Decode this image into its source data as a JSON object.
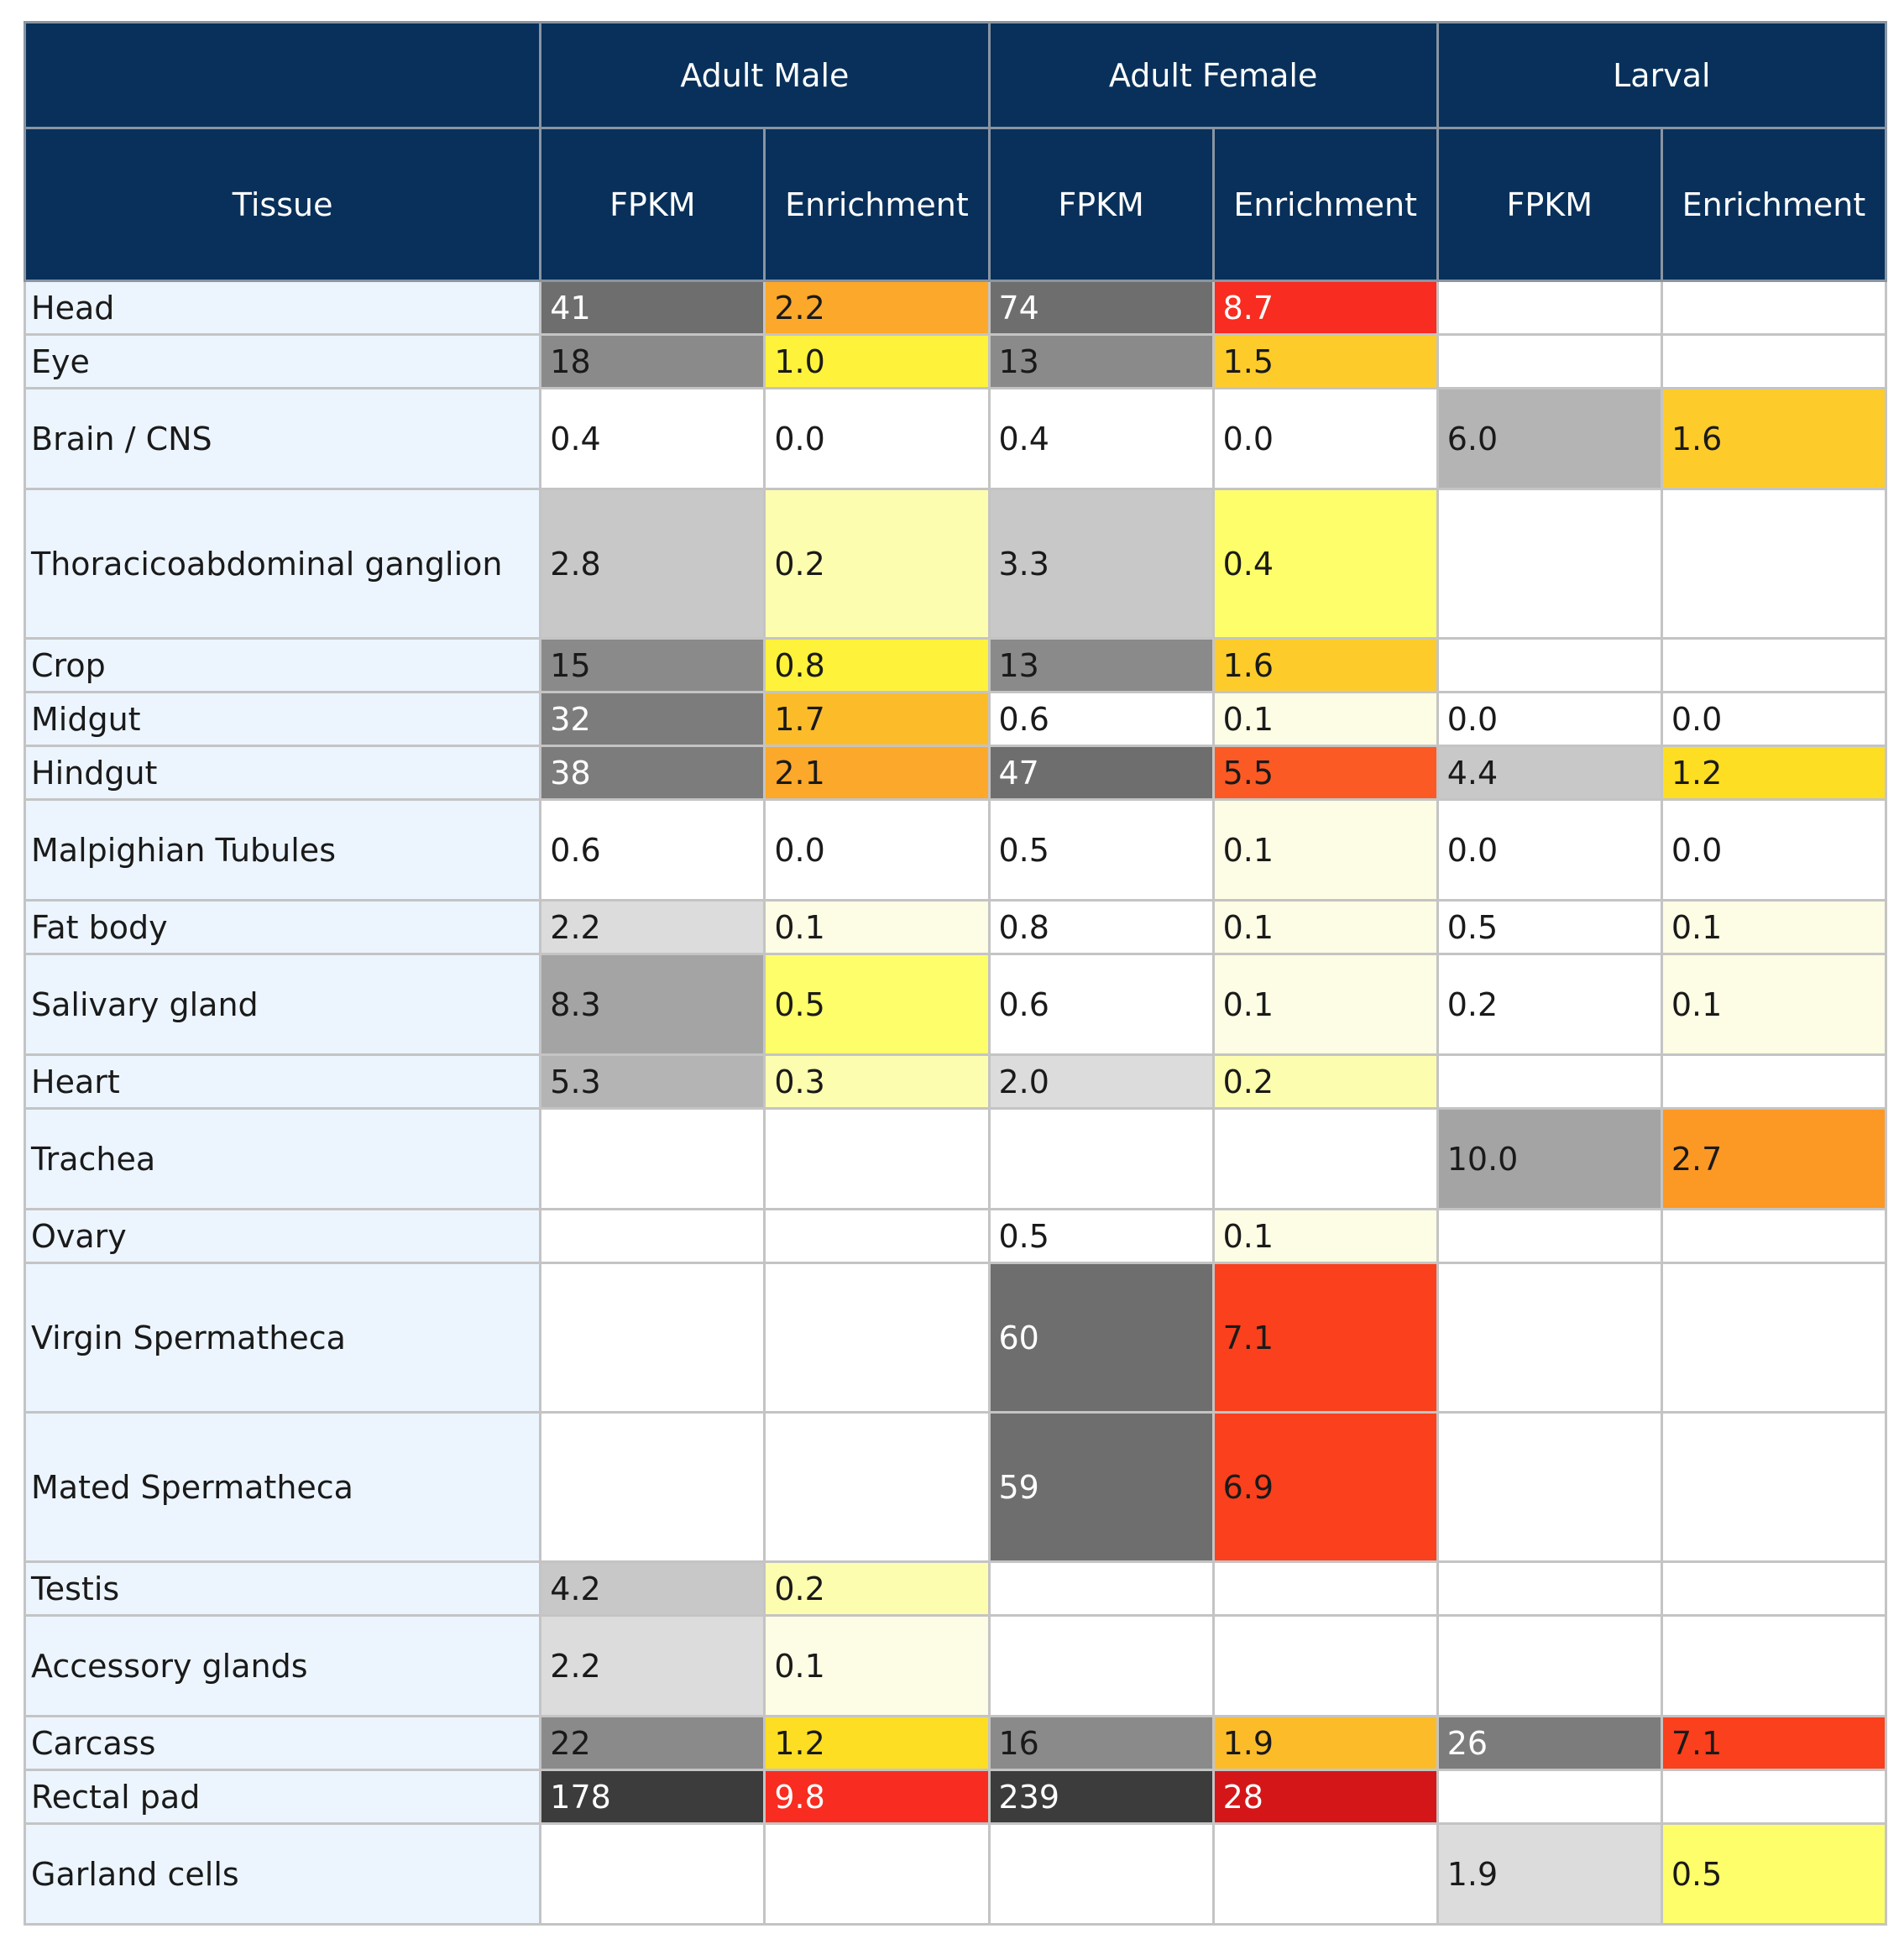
{
  "header": {
    "groups": [
      "Adult Male",
      "Adult Female",
      "Larval"
    ],
    "tissue_label": "Tissue",
    "sub_labels": [
      "FPKM",
      "Enrichment",
      "FPKM",
      "Enrichment",
      "FPKM",
      "Enrichment"
    ]
  },
  "rows": [
    {
      "tissue": "Head",
      "size": "s",
      "cells": [
        "41",
        "2.2",
        "74",
        "8.7",
        "",
        ""
      ]
    },
    {
      "tissue": "Eye",
      "size": "s",
      "cells": [
        "18",
        "1.0",
        "13",
        "1.5",
        "",
        ""
      ]
    },
    {
      "tissue": "Brain / CNS",
      "size": "m",
      "cells": [
        "0.4",
        "0.0",
        "0.4",
        "0.0",
        "6.0",
        "1.6"
      ]
    },
    {
      "tissue": "Thoracicoabdominal ganglion",
      "size": "l",
      "cells": [
        "2.8",
        "0.2",
        "3.3",
        "0.4",
        "",
        ""
      ]
    },
    {
      "tissue": "Crop",
      "size": "s",
      "cells": [
        "15",
        "0.8",
        "13",
        "1.6",
        "",
        ""
      ]
    },
    {
      "tissue": "Midgut",
      "size": "s",
      "cells": [
        "32",
        "1.7",
        "0.6",
        "0.1",
        "0.0",
        "0.0"
      ]
    },
    {
      "tissue": "Hindgut",
      "size": "s",
      "cells": [
        "38",
        "2.1",
        "47",
        "5.5",
        "4.4",
        "1.2"
      ]
    },
    {
      "tissue": "Malpighian Tubules",
      "size": "m",
      "cells": [
        "0.6",
        "0.0",
        "0.5",
        "0.1",
        "0.0",
        "0.0"
      ]
    },
    {
      "tissue": "Fat body",
      "size": "s",
      "cells": [
        "2.2",
        "0.1",
        "0.8",
        "0.1",
        "0.5",
        "0.1"
      ]
    },
    {
      "tissue": "Salivary gland",
      "size": "m",
      "cells": [
        "8.3",
        "0.5",
        "0.6",
        "0.1",
        "0.2",
        "0.1"
      ]
    },
    {
      "tissue": "Heart",
      "size": "s",
      "cells": [
        "5.3",
        "0.3",
        "2.0",
        "0.2",
        "",
        ""
      ]
    },
    {
      "tissue": "Trachea",
      "size": "m",
      "cells": [
        "",
        "",
        "",
        "",
        "10.0",
        "2.7"
      ]
    },
    {
      "tissue": "Ovary",
      "size": "s",
      "cells": [
        "",
        "",
        "0.5",
        "0.1",
        "",
        ""
      ]
    },
    {
      "tissue": "Virgin Spermatheca",
      "size": "l",
      "cells": [
        "",
        "",
        "60",
        "7.1",
        "",
        ""
      ]
    },
    {
      "tissue": "Mated Spermatheca",
      "size": "l",
      "cells": [
        "",
        "",
        "59",
        "6.9",
        "",
        ""
      ]
    },
    {
      "tissue": "Testis",
      "size": "s",
      "cells": [
        "4.2",
        "0.2",
        "",
        "",
        "",
        ""
      ]
    },
    {
      "tissue": "Accessory glands",
      "size": "m",
      "cells": [
        "2.2",
        "0.1",
        "",
        "",
        "",
        ""
      ]
    },
    {
      "tissue": "Carcass",
      "size": "s",
      "cells": [
        "22",
        "1.2",
        "16",
        "1.9",
        "26",
        "7.1"
      ]
    },
    {
      "tissue": "Rectal pad",
      "size": "s",
      "cells": [
        "178",
        "9.8",
        "239",
        "28",
        "",
        ""
      ]
    },
    {
      "tissue": "Garland cells",
      "size": "m",
      "cells": [
        "",
        "",
        "",
        "",
        "1.9",
        "0.5"
      ]
    }
  ],
  "colors": {
    "header_bg": "#08305a",
    "tissue_bg": "#ecf5fe",
    "fpkm_scale": [
      "#ffffff",
      "#dcdcdc",
      "#c8c8c8",
      "#b4b4b4",
      "#a4a4a4",
      "#8a8a8a",
      "#7c7c7c",
      "#6e6e6e",
      "#3c3c3c"
    ],
    "enrichment_scale": [
      "#ffffff",
      "#fdfce4",
      "#fdfdb0",
      "#fefe6a",
      "#fff23a",
      "#fede22",
      "#fdcc2a",
      "#fcbc2a",
      "#fca82a",
      "#fc9824",
      "#fc5a24",
      "#fa401c",
      "#f82c20",
      "#d41618"
    ]
  }
}
